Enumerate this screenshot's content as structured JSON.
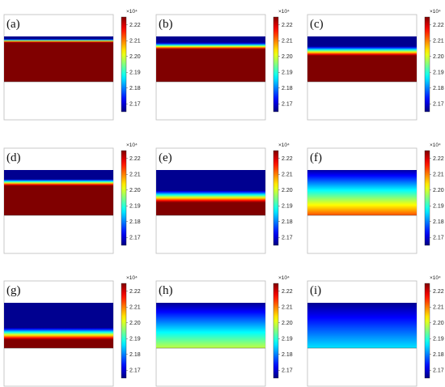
{
  "chart_data": [
    {
      "label": "(a)",
      "type": "heatmap",
      "colorbar": {
        "ticks": [
          "2.17",
          "2.18",
          "2.19",
          "2.20",
          "2.21",
          "2.22"
        ],
        "range": [
          2.165,
          2.225
        ],
        "multiplier": "×10⁴"
      },
      "field": {
        "top_value": 2.166,
        "bottom_value": 2.225,
        "transition_depth": 0.06,
        "transition_width": 0.07
      }
    },
    {
      "label": "(b)",
      "type": "heatmap",
      "colorbar": {
        "ticks": [
          "2.17",
          "2.18",
          "2.19",
          "2.20",
          "2.21",
          "2.22"
        ],
        "range": [
          2.165,
          2.225
        ],
        "multiplier": "×10⁴"
      },
      "field": {
        "top_value": 2.166,
        "bottom_value": 2.225,
        "transition_depth": 0.14,
        "transition_width": 0.14
      }
    },
    {
      "label": "(c)",
      "type": "heatmap",
      "colorbar": {
        "ticks": [
          "2.17",
          "2.18",
          "2.19",
          "2.20",
          "2.21",
          "2.22"
        ],
        "range": [
          2.165,
          2.225
        ],
        "multiplier": "×10⁴"
      },
      "field": {
        "top_value": 2.166,
        "bottom_value": 2.225,
        "transition_depth": 0.22,
        "transition_width": 0.2
      }
    },
    {
      "label": "(d)",
      "type": "heatmap",
      "colorbar": {
        "ticks": [
          "2.17",
          "2.18",
          "2.19",
          "2.20",
          "2.21",
          "2.22"
        ],
        "range": [
          2.165,
          2.225
        ],
        "multiplier": "×10⁴"
      },
      "field": {
        "top_value": 2.166,
        "bottom_value": 2.225,
        "transition_depth": 0.2,
        "transition_width": 0.14
      }
    },
    {
      "label": "(e)",
      "type": "heatmap",
      "colorbar": {
        "ticks": [
          "2.17",
          "2.18",
          "2.19",
          "2.20",
          "2.21",
          "2.22"
        ],
        "range": [
          2.165,
          2.225
        ],
        "multiplier": "×10⁴"
      },
      "field": {
        "top_value": 2.166,
        "bottom_value": 2.225,
        "transition_depth": 0.45,
        "transition_width": 0.26
      }
    },
    {
      "label": "(f)",
      "type": "heatmap",
      "colorbar": {
        "ticks": [
          "2.17",
          "2.18",
          "2.19",
          "2.20",
          "2.21",
          "2.22"
        ],
        "range": [
          2.165,
          2.225
        ],
        "multiplier": "×10⁴"
      },
      "field": {
        "top_value": 2.167,
        "bottom_value": 2.213,
        "transition_depth": 0.0,
        "transition_width": 1.0
      }
    },
    {
      "label": "(g)",
      "type": "heatmap",
      "colorbar": {
        "ticks": [
          "2.17",
          "2.18",
          "2.19",
          "2.20",
          "2.21",
          "2.22"
        ],
        "range": [
          2.165,
          2.225
        ],
        "multiplier": "×10⁴"
      },
      "field": {
        "top_value": 2.166,
        "bottom_value": 2.225,
        "transition_depth": 0.55,
        "transition_width": 0.26
      }
    },
    {
      "label": "(h)",
      "type": "heatmap",
      "colorbar": {
        "ticks": [
          "2.17",
          "2.18",
          "2.19",
          "2.20",
          "2.21",
          "2.22"
        ],
        "range": [
          2.165,
          2.225
        ],
        "multiplier": "×10⁴"
      },
      "field": {
        "top_value": 2.166,
        "bottom_value": 2.199,
        "transition_depth": 0.0,
        "transition_width": 1.0
      }
    },
    {
      "label": "(i)",
      "type": "heatmap",
      "colorbar": {
        "ticks": [
          "2.17",
          "2.18",
          "2.19",
          "2.20",
          "2.21",
          "2.22"
        ],
        "range": [
          2.165,
          2.225
        ],
        "multiplier": "×10⁴"
      },
      "field": {
        "top_value": 2.166,
        "bottom_value": 2.186,
        "transition_depth": 0.0,
        "transition_width": 1.0
      }
    }
  ]
}
